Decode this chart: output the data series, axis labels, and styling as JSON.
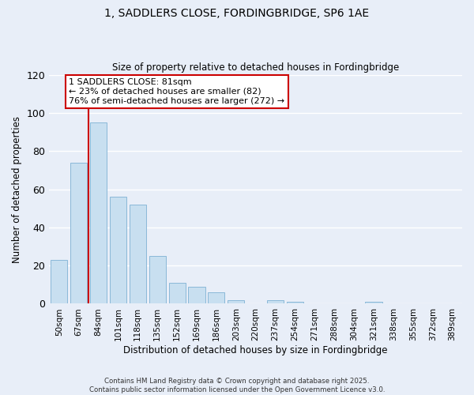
{
  "title": "1, SADDLERS CLOSE, FORDINGBRIDGE, SP6 1AE",
  "subtitle": "Size of property relative to detached houses in Fordingbridge",
  "xlabel": "Distribution of detached houses by size in Fordingbridge",
  "ylabel": "Number of detached properties",
  "bar_labels": [
    "50sqm",
    "67sqm",
    "84sqm",
    "101sqm",
    "118sqm",
    "135sqm",
    "152sqm",
    "169sqm",
    "186sqm",
    "203sqm",
    "220sqm",
    "237sqm",
    "254sqm",
    "271sqm",
    "288sqm",
    "304sqm",
    "321sqm",
    "338sqm",
    "355sqm",
    "372sqm",
    "389sqm"
  ],
  "bar_values": [
    23,
    74,
    95,
    56,
    52,
    25,
    11,
    9,
    6,
    2,
    0,
    2,
    1,
    0,
    0,
    0,
    1,
    0,
    0,
    0,
    0
  ],
  "bar_color": "#c8dff0",
  "bar_edge_color": "#8ab8d8",
  "vline_color": "#cc0000",
  "ylim": [
    0,
    120
  ],
  "yticks": [
    0,
    20,
    40,
    60,
    80,
    100,
    120
  ],
  "annotation_title": "1 SADDLERS CLOSE: 81sqm",
  "annotation_line1": "← 23% of detached houses are smaller (82)",
  "annotation_line2": "76% of semi-detached houses are larger (272) →",
  "annotation_box_color": "#ffffff",
  "annotation_box_edge": "#cc0000",
  "footer1": "Contains HM Land Registry data © Crown copyright and database right 2025.",
  "footer2": "Contains public sector information licensed under the Open Government Licence v3.0.",
  "bg_color": "#e8eef8",
  "grid_color": "#ffffff"
}
